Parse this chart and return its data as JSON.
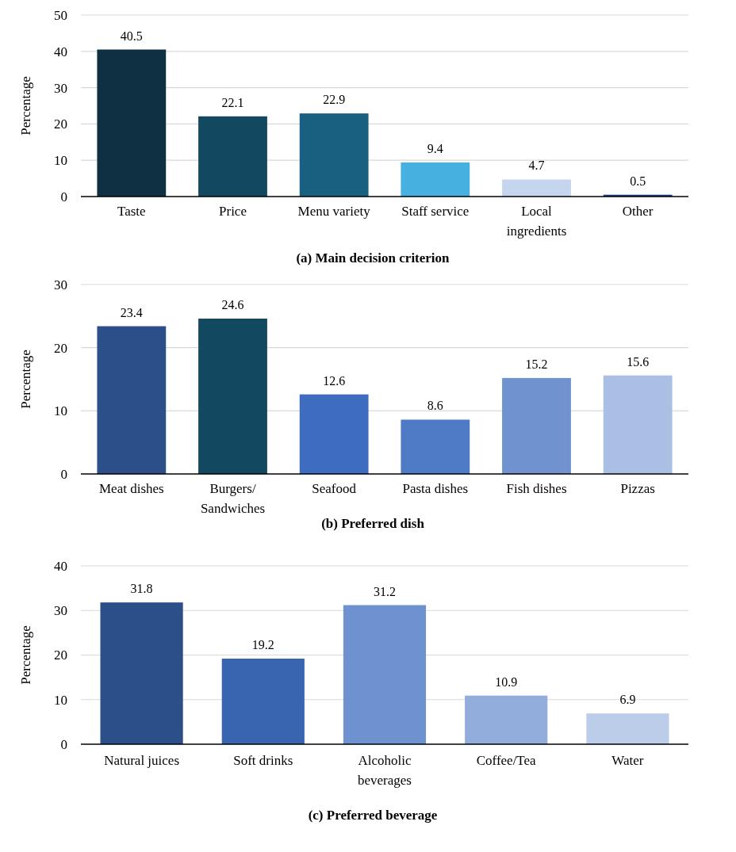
{
  "chart_data": [
    {
      "type": "bar",
      "title": "(a) Main decision criterion",
      "ylabel": "Percentage",
      "categories": [
        "Taste",
        "Price",
        "Menu variety",
        "Staff service",
        "Local ingredients",
        "Other"
      ],
      "values": [
        40.5,
        22.1,
        22.9,
        9.4,
        4.7,
        0.5
      ],
      "colors": [
        "#0f3042",
        "#134861",
        "#185f80",
        "#46b0e0",
        "#c5d5ee",
        "#1f3a8a"
      ],
      "ylim": [
        0,
        50
      ],
      "yticks": [
        0,
        10,
        20,
        30,
        40,
        50
      ],
      "grid": "y",
      "data_labels": true
    },
    {
      "type": "bar",
      "title": "(b) Preferred dish",
      "ylabel": "Percentage",
      "categories": [
        "Meat dishes",
        "Burgers/ Sandwiches",
        "Seafood",
        "Pasta dishes",
        "Fish dishes",
        "Pizzas"
      ],
      "values": [
        23.4,
        24.6,
        12.6,
        8.6,
        15.2,
        15.6
      ],
      "colors": [
        "#2c4f8a",
        "#134861",
        "#3e6dc0",
        "#4e7ac6",
        "#7093d0",
        "#a9bfe3"
      ],
      "ylim": [
        0,
        30
      ],
      "yticks": [
        0,
        10,
        20,
        30
      ],
      "grid": "y",
      "data_labels": true
    },
    {
      "type": "bar",
      "title": "(c) Preferred beverage",
      "ylabel": "Percentage",
      "categories": [
        "Natural juices",
        "Soft drinks",
        "Alcoholic beverages",
        "Coffee/Tea",
        "Water"
      ],
      "values": [
        31.8,
        19.2,
        31.2,
        10.9,
        6.9
      ],
      "colors": [
        "#2c4f8a",
        "#3864b0",
        "#6e92d0",
        "#92addc",
        "#bccde9"
      ],
      "ylim": [
        0,
        40
      ],
      "yticks": [
        0,
        10,
        20,
        30,
        40
      ],
      "grid": "y",
      "data_labels": true
    }
  ]
}
